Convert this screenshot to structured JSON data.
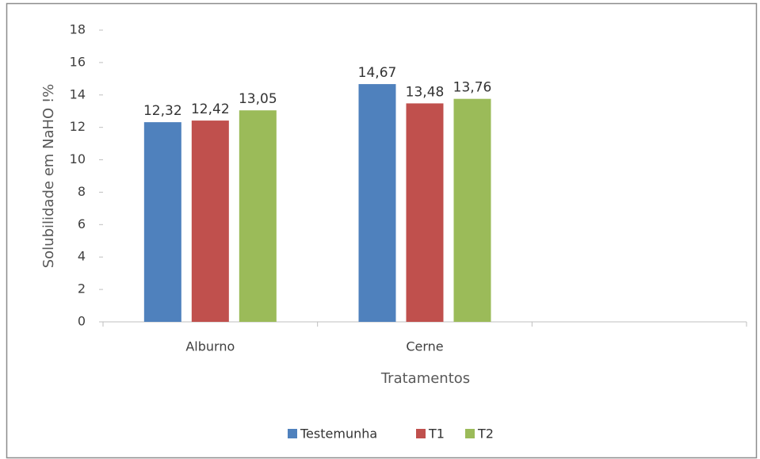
{
  "chart_data": {
    "type": "bar",
    "y_label": "Solubilidade em NaHO !%",
    "x_label": "Tratamentos",
    "categories": [
      "Alburno",
      "Cerne",
      null
    ],
    "series": [
      {
        "name": "Testemunha",
        "color": "#4f81bd",
        "values": [
          12.32,
          14.67,
          null
        ],
        "value_labels": [
          "12,32",
          "14,67",
          null
        ]
      },
      {
        "name": "T1",
        "color": "#c0504d",
        "values": [
          12.42,
          13.48,
          null
        ],
        "value_labels": [
          "12,42",
          "13,48",
          null
        ]
      },
      {
        "name": "T2",
        "color": "#9bbb59",
        "values": [
          13.05,
          13.76,
          null
        ],
        "value_labels": [
          "13,05",
          "13,76",
          null
        ]
      }
    ],
    "ylim": [
      0,
      18
    ],
    "yticks": [
      0,
      2,
      4,
      6,
      8,
      10,
      12,
      14,
      16,
      18
    ],
    "grid": false,
    "legend": "bottom"
  }
}
